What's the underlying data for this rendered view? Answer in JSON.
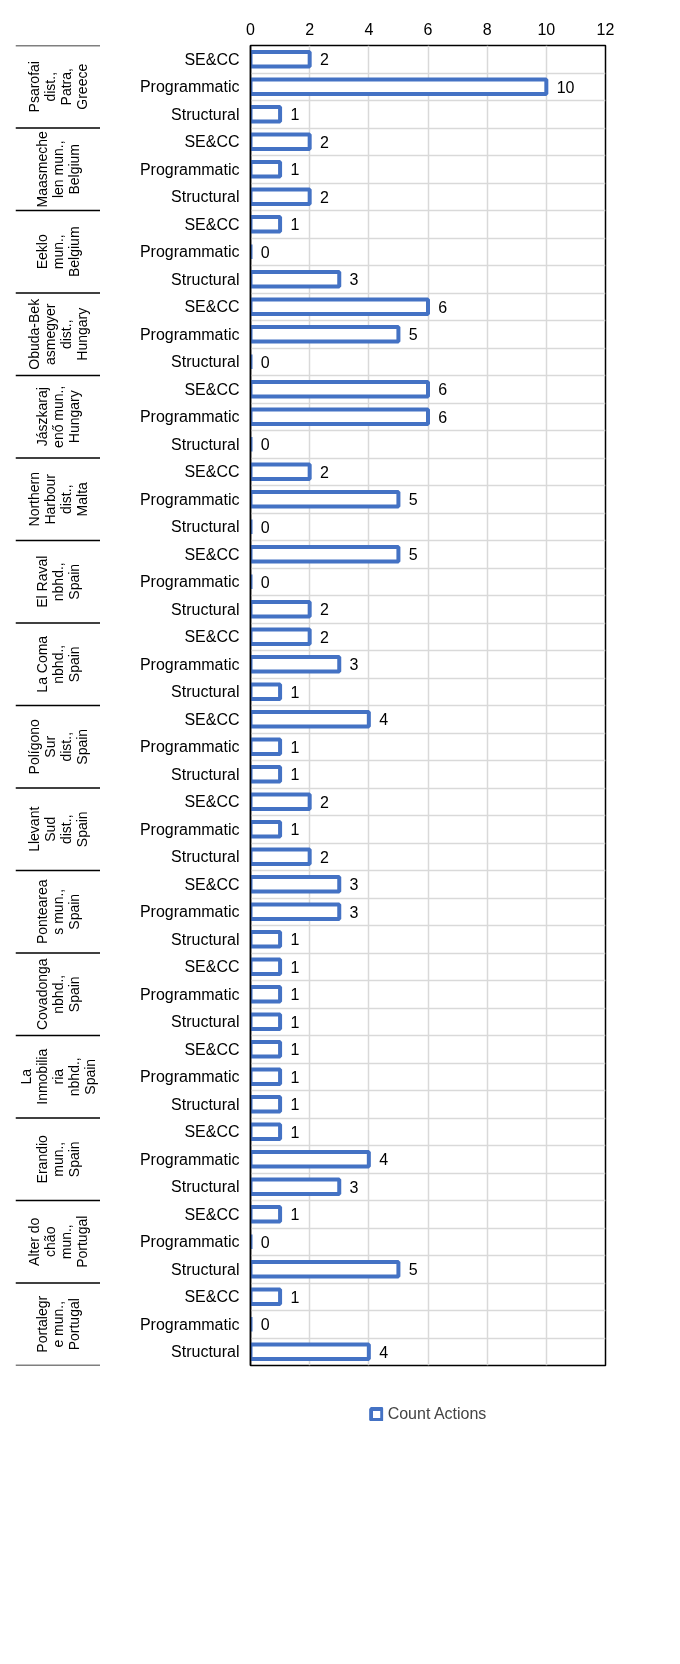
{
  "chart_data": {
    "type": "bar",
    "orientation": "horizontal",
    "categories": [
      "SE&CC",
      "Programmatic",
      "Structural",
      "SE&CC",
      "Programmatic",
      "Structural",
      "SE&CC",
      "Programmatic",
      "Structural",
      "SE&CC",
      "Programmatic",
      "Structural",
      "SE&CC",
      "Programmatic",
      "Structural",
      "SE&CC",
      "Programmatic",
      "Structural",
      "SE&CC",
      "Programmatic",
      "Structural",
      "SE&CC",
      "Programmatic",
      "Structural",
      "SE&CC",
      "Programmatic",
      "Structural",
      "SE&CC",
      "Programmatic",
      "Structural",
      "SE&CC",
      "Programmatic",
      "Structural",
      "SE&CC",
      "Programmatic",
      "Structural",
      "SE&CC",
      "Programmatic",
      "Structural",
      "SE&CC",
      "Programmatic",
      "Structural",
      "SE&CC",
      "Programmatic",
      "Structural",
      "SE&CC",
      "Programmatic",
      "Structural"
    ],
    "series": [
      {
        "name": "Count Actions",
        "color": "#4472c4",
        "values": [
          2,
          10,
          1,
          2,
          1,
          2,
          1,
          0,
          3,
          6,
          5,
          0,
          6,
          6,
          0,
          2,
          5,
          0,
          5,
          0,
          2,
          2,
          3,
          1,
          4,
          1,
          1,
          2,
          1,
          2,
          3,
          3,
          1,
          1,
          1,
          1,
          1,
          1,
          1,
          1,
          4,
          3,
          1,
          0,
          5,
          1,
          0,
          4
        ]
      }
    ],
    "annotations": [
      "Psarofai dist., Patra, Greece",
      "Maasmechelen mun., Belgium",
      "Eeklo mun., Belgium",
      "Obuda-Bekasmegyer dist., Hungary",
      "Jászkarajenő mun., Hungary",
      "Northern Harbour dist., Malta",
      "El Raval nbhd., Spain",
      "La Coma nbhd., Spain",
      "Polígono Sur dist., Spain",
      "Llevant Sud dist., Spain",
      "Ponteareas mun., Spain",
      "Covadonga nbhd., Spain",
      "La Inmobiliaria nbhd., Spain",
      "Erandio mun., Spain",
      "Alter do chão mun., Portugal",
      "Portalegre mun., Portugal"
    ],
    "xlim": [
      0,
      12
    ],
    "xticks": [
      0,
      2,
      4,
      6,
      8,
      10,
      12
    ],
    "grid": true,
    "data_labels": true,
    "legend": "bottom"
  }
}
